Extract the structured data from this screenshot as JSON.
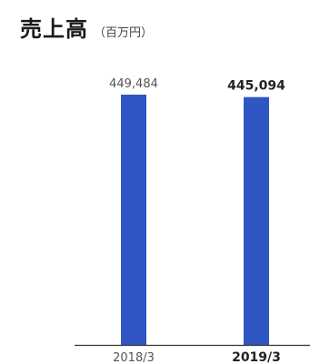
{
  "chart_data": {
    "type": "bar",
    "title": "売上高",
    "unit": "（百万円）",
    "categories": [
      "2018/3",
      "2019/3"
    ],
    "values": [
      449484,
      445094
    ],
    "value_labels": [
      "449,484",
      "445,094"
    ],
    "emphasized_category_index": 1,
    "xlabel": "",
    "ylabel": "",
    "ylim": [
      0,
      449484
    ],
    "grid": false,
    "legend": "none"
  },
  "colors": {
    "bar": "#2f56c2",
    "text": "#222222",
    "muted_text": "#555555",
    "axis": "#333333"
  }
}
